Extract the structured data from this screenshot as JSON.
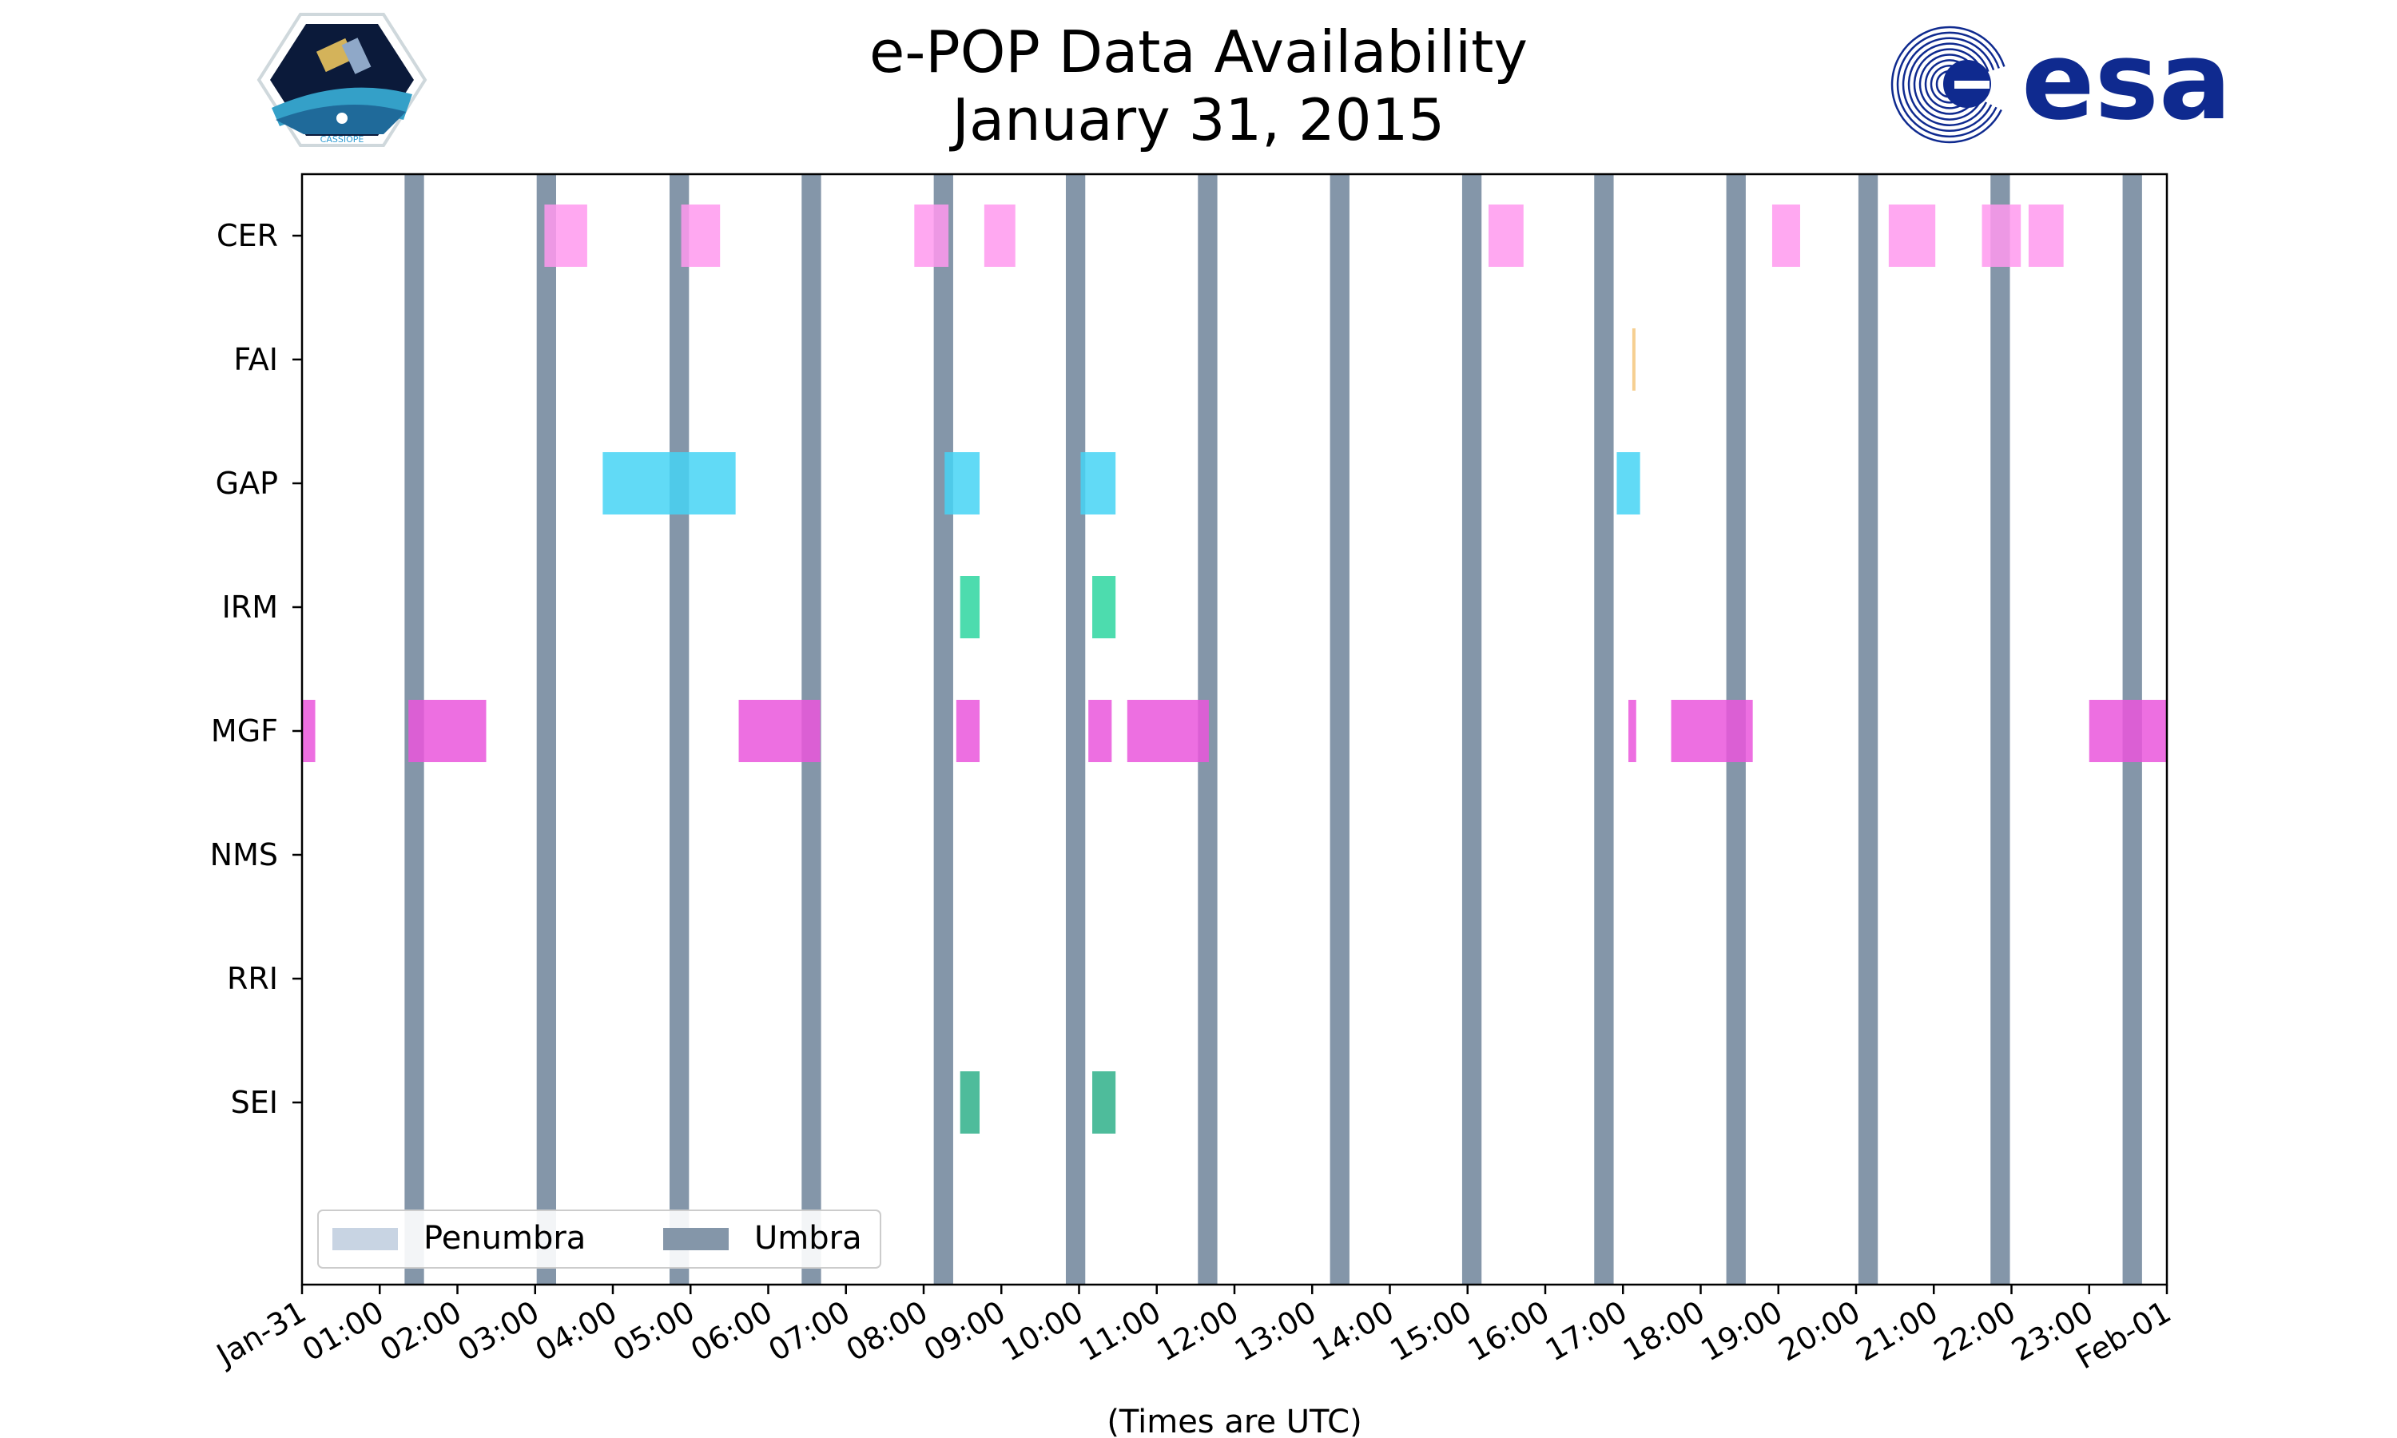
{
  "chart_data": {
    "type": "timeline",
    "title": "e-POP Data Availability",
    "subtitle": "January 31, 2015",
    "xlabel": "(Times are UTC)",
    "xlim": [
      0,
      24
    ],
    "x_tick_labels": [
      "Jan-31",
      "01:00",
      "02:00",
      "03:00",
      "04:00",
      "05:00",
      "06:00",
      "07:00",
      "08:00",
      "09:00",
      "10:00",
      "11:00",
      "12:00",
      "13:00",
      "14:00",
      "15:00",
      "16:00",
      "17:00",
      "18:00",
      "19:00",
      "20:00",
      "21:00",
      "22:00",
      "23:00",
      "Feb-01"
    ],
    "instruments": [
      "CER",
      "FAI",
      "GAP",
      "IRM",
      "MGF",
      "NMS",
      "RRI",
      "SEI"
    ],
    "umbra_intervals": [
      [
        1.32,
        1.57
      ],
      [
        3.02,
        3.27
      ],
      [
        4.73,
        4.98
      ],
      [
        6.43,
        6.68
      ],
      [
        8.13,
        8.38
      ],
      [
        9.83,
        10.08
      ],
      [
        11.53,
        11.78
      ],
      [
        13.23,
        13.48
      ],
      [
        14.93,
        15.18
      ],
      [
        16.63,
        16.88
      ],
      [
        18.33,
        18.58
      ],
      [
        20.03,
        20.28
      ],
      [
        21.73,
        21.98
      ],
      [
        23.43,
        23.68
      ]
    ],
    "series": [
      {
        "name": "CER",
        "color": "#ff99ee",
        "intervals": [
          [
            3.12,
            3.67
          ],
          [
            4.88,
            5.38
          ],
          [
            7.88,
            8.32
          ],
          [
            8.78,
            9.18
          ],
          [
            15.27,
            15.72
          ],
          [
            18.92,
            19.28
          ],
          [
            20.42,
            21.02
          ],
          [
            21.62,
            22.12
          ],
          [
            22.22,
            22.67
          ]
        ]
      },
      {
        "name": "FAI",
        "color": "#f5c77e",
        "intervals": [
          [
            17.12,
            17.15
          ]
        ]
      },
      {
        "name": "GAP",
        "color": "#45d3f5",
        "intervals": [
          [
            3.87,
            5.58
          ],
          [
            8.27,
            8.72
          ],
          [
            10.02,
            10.47
          ],
          [
            16.92,
            17.22
          ]
        ]
      },
      {
        "name": "IRM",
        "color": "#2ed6a0",
        "intervals": [
          [
            8.47,
            8.72
          ],
          [
            10.17,
            10.47
          ]
        ]
      },
      {
        "name": "MGF",
        "color": "#ea56dc",
        "intervals": [
          [
            0.0,
            0.17
          ],
          [
            1.37,
            2.37
          ],
          [
            5.62,
            6.67
          ],
          [
            8.42,
            8.72
          ],
          [
            10.12,
            10.42
          ],
          [
            10.62,
            11.67
          ],
          [
            17.07,
            17.17
          ],
          [
            17.62,
            18.67
          ],
          [
            23.0,
            24.0
          ]
        ]
      },
      {
        "name": "NMS",
        "color": "#999999",
        "intervals": []
      },
      {
        "name": "RRI",
        "color": "#999999",
        "intervals": []
      },
      {
        "name": "SEI",
        "color": "#2fb08a",
        "intervals": [
          [
            8.47,
            8.72
          ],
          [
            10.17,
            10.47
          ]
        ]
      }
    ],
    "legend": {
      "position": "lower-left",
      "items": [
        {
          "label": "Penumbra",
          "color": "#c8d4e3"
        },
        {
          "label": "Umbra",
          "color": "#8496a9"
        }
      ]
    },
    "grid": false
  },
  "logos": {
    "left": {
      "name": "CASSIOPE mission badge",
      "text": "CASSIOPE"
    },
    "right": {
      "name": "ESA logo",
      "text": "esa",
      "color": "#0f2a8f"
    }
  }
}
